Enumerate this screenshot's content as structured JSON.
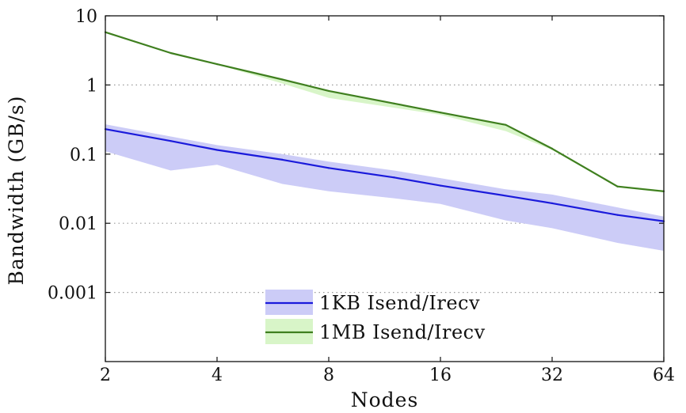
{
  "chart_data": {
    "type": "line",
    "title": "",
    "xlabel": "Nodes",
    "ylabel": "Bandwidth (GB/s)",
    "xscale": "log2",
    "yscale": "log10",
    "xlim": [
      2,
      64
    ],
    "ylim": [
      0.0001,
      10
    ],
    "x_ticks": [
      2,
      4,
      8,
      16,
      32,
      64
    ],
    "x_tick_labels": [
      "2",
      "4",
      "8",
      "16",
      "32",
      "64"
    ],
    "y_ticks": [
      0.001,
      0.01,
      0.1,
      1,
      10
    ],
    "y_tick_labels": [
      "0.001",
      "0.01",
      "0.1",
      "1",
      "10"
    ],
    "grid": "horizontal dotted",
    "legend_position": "bottom-center",
    "series": [
      {
        "name": "1KB Isend/Irecv",
        "color": "#1a1adb",
        "band_color": "#ccccf7",
        "x": [
          2,
          3,
          4,
          6,
          8,
          12,
          16,
          24,
          32,
          48,
          64
        ],
        "values": [
          0.23,
          0.155,
          0.115,
          0.083,
          0.063,
          0.046,
          0.035,
          0.025,
          0.0195,
          0.0132,
          0.0107
        ],
        "band_upper": [
          0.27,
          0.18,
          0.135,
          0.1,
          0.078,
          0.058,
          0.045,
          0.031,
          0.026,
          0.017,
          0.0125
        ],
        "band_lower": [
          0.11,
          0.058,
          0.07,
          0.037,
          0.029,
          0.023,
          0.019,
          0.011,
          0.0085,
          0.0052,
          0.004
        ]
      },
      {
        "name": "1MB Isend/Irecv",
        "color": "#3f7f1f",
        "band_color": "#d8f5c8",
        "x": [
          2,
          3,
          4,
          6,
          8,
          12,
          16,
          24,
          32,
          48,
          64
        ],
        "values": [
          5.8,
          2.9,
          2.0,
          1.2,
          0.82,
          0.54,
          0.4,
          0.265,
          0.12,
          0.034,
          0.029
        ],
        "band_upper": [
          5.9,
          2.95,
          2.02,
          1.22,
          0.84,
          0.55,
          0.41,
          0.27,
          0.122,
          0.035,
          0.03
        ],
        "band_lower": [
          5.7,
          2.85,
          1.98,
          1.05,
          0.65,
          0.47,
          0.37,
          0.215,
          0.115,
          0.033,
          0.028
        ]
      }
    ]
  }
}
